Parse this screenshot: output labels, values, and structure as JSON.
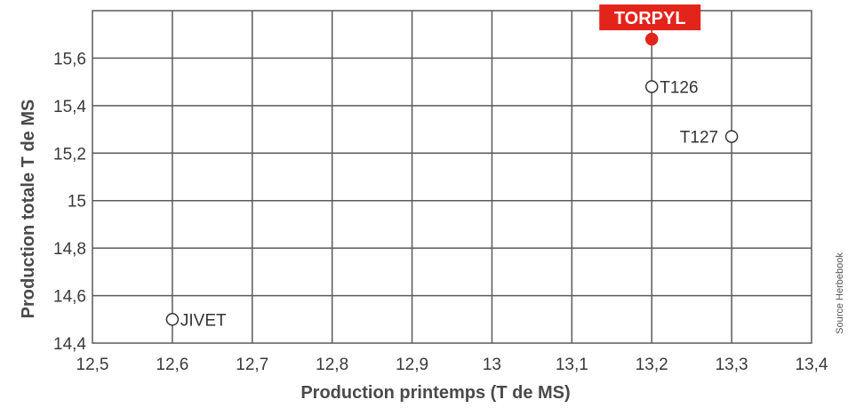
{
  "chart_data": {
    "type": "scatter",
    "xlabel": "Production printemps (T de MS)",
    "ylabel": "Production totale T de MS",
    "xlim": [
      12.5,
      13.4
    ],
    "ylim": [
      14.4,
      15.8
    ],
    "xticks": [
      12.5,
      12.6,
      12.7,
      12.8,
      12.9,
      13.0,
      13.1,
      13.2,
      13.3,
      13.4
    ],
    "xtick_labels": [
      "12,5",
      "12,6",
      "12,7",
      "12,8",
      "12,9",
      "13",
      "13,1",
      "13,2",
      "13,3",
      "13,4"
    ],
    "yticks": [
      14.4,
      14.6,
      14.8,
      15.0,
      15.2,
      15.4,
      15.6
    ],
    "ytick_labels": [
      "14,4",
      "14,6",
      "14,8",
      "15",
      "15,2",
      "15,4",
      "15,6"
    ],
    "grid": true,
    "points": [
      {
        "label": "TORPYL",
        "x": 13.2,
        "y": 15.68,
        "highlight": true,
        "label_pos": "above"
      },
      {
        "label": "T126",
        "x": 13.2,
        "y": 15.48,
        "highlight": false,
        "label_pos": "right"
      },
      {
        "label": "T127",
        "x": 13.3,
        "y": 15.27,
        "highlight": false,
        "label_pos": "left"
      },
      {
        "label": "JIVET",
        "x": 12.6,
        "y": 14.5,
        "highlight": false,
        "label_pos": "right"
      }
    ],
    "source_note": "Source Herbebook",
    "highlight_color": "#e3241b",
    "grid_color": "#5a5a5a"
  }
}
